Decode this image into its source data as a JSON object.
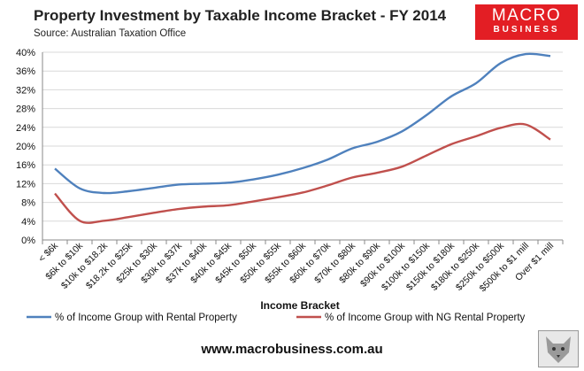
{
  "title": "Property Investment by Taxable Income Bracket - FY 2014",
  "source": "Source: Australian Taxation Office",
  "logo": {
    "line1": "MACRO",
    "line2": "BUSINESS"
  },
  "website": "www.macrobusiness.com.au",
  "colors": {
    "series1": "#4f81bd",
    "series2": "#c0504d",
    "logo_bg": "#e31e24",
    "grid": "#d9d9d9"
  },
  "chart_data": {
    "type": "line",
    "xlabel": "Income Bracket",
    "ylabel": "",
    "ylim": [
      0,
      40
    ],
    "yticks": [
      "0%",
      "4%",
      "8%",
      "12%",
      "16%",
      "20%",
      "24%",
      "28%",
      "32%",
      "36%",
      "40%"
    ],
    "grid": true,
    "legend_position": "bottom",
    "categories": [
      "< $6k",
      "$6k to $10k",
      "$10k to $18.2k",
      "$18.2k to $25k",
      "$25k to $30k",
      "$30k to $37k",
      "$37k to $40k",
      "$40k to $45k",
      "$45k to $50k",
      "$50k to $55k",
      "$55k to $60k",
      "$60k to $70k",
      "$70k to $80k",
      "$80k to $90k",
      "$90k to $100k",
      "$100k to $150k",
      "$150k to $180k",
      "$180k to $250k",
      "$250k to $500k",
      "$500k to $1 mill",
      "Over $1 mill"
    ],
    "series": [
      {
        "name": "% of Income Group with Rental Property",
        "color": "#4f81bd",
        "values": [
          15.2,
          11.0,
          10.0,
          10.4,
          11.1,
          11.8,
          12.0,
          12.2,
          12.9,
          13.9,
          15.3,
          17.1,
          19.5,
          20.9,
          23.1,
          26.6,
          30.6,
          33.4,
          37.7,
          39.6,
          39.2
        ]
      },
      {
        "name": "% of Income Group with NG Rental Property",
        "color": "#c0504d",
        "values": [
          9.9,
          4.1,
          4.1,
          4.9,
          5.8,
          6.6,
          7.1,
          7.4,
          8.2,
          9.1,
          10.1,
          11.6,
          13.3,
          14.3,
          15.6,
          18.0,
          20.4,
          22.1,
          23.9,
          24.6,
          21.4
        ]
      }
    ]
  }
}
